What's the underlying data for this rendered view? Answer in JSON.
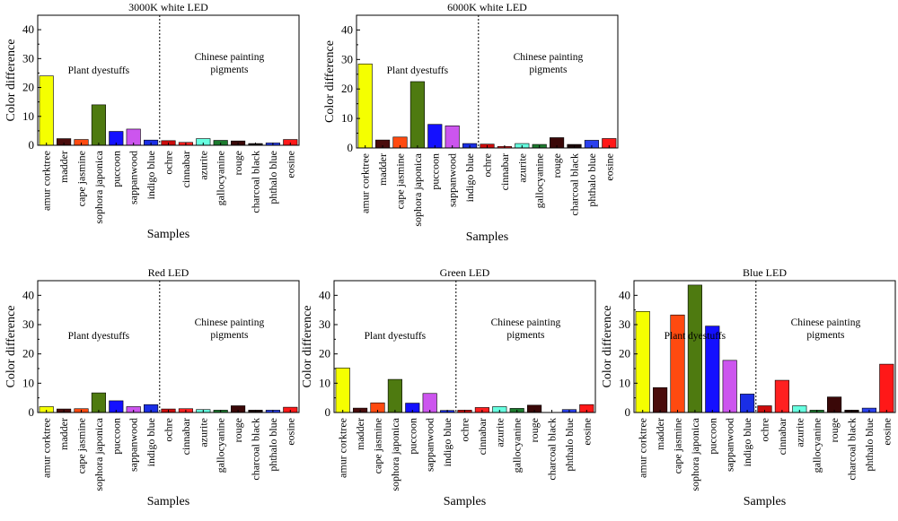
{
  "chart_data": [
    {
      "type": "bar",
      "title": "3000K white LED",
      "xlabel": "Samples",
      "ylabel": "Color difference",
      "ylim": [
        0,
        45
      ],
      "yticks": [
        0,
        10,
        20,
        30,
        40
      ],
      "categories": [
        "amur corktree",
        "madder",
        "cape jasmine",
        "sophora japonica",
        "puccoon",
        "sappanwood",
        "indigo blue",
        "ochre",
        "cinnabar",
        "azurite",
        "gallocyanine",
        "rouge",
        "charcoal black",
        "phthalo blue",
        "eosine"
      ],
      "values": [
        24,
        2.3,
        2.0,
        14,
        4.8,
        5.6,
        1.8,
        1.6,
        1.0,
        2.3,
        1.7,
        1.5,
        0.6,
        0.8,
        2.0
      ],
      "annotations": [
        "Plant dyestuffs",
        "Chinese painting pigments"
      ]
    },
    {
      "type": "bar",
      "title": "6000K white LED",
      "xlabel": "Samples",
      "ylabel": "Color difference",
      "ylim": [
        0,
        45
      ],
      "yticks": [
        0,
        10,
        20,
        30,
        40
      ],
      "categories": [
        "amur corktree",
        "madder",
        "cape jasmine",
        "sophora japonica",
        "puccoon",
        "sappanwood",
        "indigo blue",
        "ochre",
        "cinnabar",
        "azurite",
        "gallocyanine",
        "rouge",
        "charcoal black",
        "phthalo blue",
        "eosine"
      ],
      "values": [
        28.5,
        2.7,
        3.7,
        22.5,
        8.0,
        7.5,
        1.5,
        1.3,
        0.5,
        1.5,
        1.2,
        3.5,
        1.2,
        2.6,
        3.2
      ],
      "annotations": [
        "Plant dyestuffs",
        "Chinese painting pigments"
      ]
    },
    {
      "type": "bar",
      "title": "Red LED",
      "xlabel": "Samples",
      "ylabel": "Color difference",
      "ylim": [
        0,
        45
      ],
      "yticks": [
        0,
        10,
        20,
        30,
        40
      ],
      "categories": [
        "amur corktree",
        "madder",
        "cape jasmine",
        "sophora japonica",
        "puccoon",
        "sappanwood",
        "indigo blue",
        "ochre",
        "cinnabar",
        "azurite",
        "gallocyanine",
        "rouge",
        "charcoal black",
        "phthalo blue",
        "eosine"
      ],
      "values": [
        2.0,
        1.2,
        1.3,
        6.7,
        4.0,
        2.0,
        2.7,
        1.2,
        1.3,
        1.0,
        0.8,
        2.3,
        0.8,
        0.8,
        1.8
      ],
      "annotations": [
        "Plant dyestuffs",
        "Chinese painting pigments"
      ]
    },
    {
      "type": "bar",
      "title": "Green LED",
      "xlabel": "Samples",
      "ylabel": "Color difference",
      "ylim": [
        0,
        45
      ],
      "yticks": [
        0,
        10,
        20,
        30,
        40
      ],
      "categories": [
        "amur corktree",
        "madder",
        "cape jasmine",
        "sophora japonica",
        "puccoon",
        "sappanwood",
        "indigo blue",
        "ochre",
        "cinnabar",
        "azurite",
        "gallocyanine",
        "rouge",
        "charcoal black",
        "phthalo blue",
        "eosine"
      ],
      "values": [
        15.2,
        1.5,
        3.3,
        11.3,
        3.2,
        6.5,
        0.7,
        0.8,
        1.7,
        2.0,
        1.4,
        2.5,
        0.0,
        1.0,
        2.7
      ],
      "annotations": [
        "Plant dyestuffs",
        "Chinese painting pigments"
      ]
    },
    {
      "type": "bar",
      "title": "Blue LED",
      "xlabel": "Samples",
      "ylabel": "Color difference",
      "ylim": [
        0,
        45
      ],
      "yticks": [
        0,
        10,
        20,
        30,
        40
      ],
      "categories": [
        "amur corktree",
        "madder",
        "cape jasmine",
        "sophora japonica",
        "puccoon",
        "sappanwood",
        "indigo blue",
        "ochre",
        "cinnabar",
        "azurite",
        "gallocyanine",
        "rouge",
        "charcoal black",
        "phthalo blue",
        "eosine"
      ],
      "values": [
        34.5,
        8.5,
        33.3,
        43.5,
        29.5,
        17.8,
        6.3,
        2.3,
        11.0,
        2.3,
        0.8,
        5.3,
        0.8,
        1.5,
        16.5
      ],
      "annotations": [
        "Plant dyestuffs",
        "Chinese painting pigments"
      ]
    }
  ],
  "bar_colors": [
    "#f5ff00",
    "#4a0c0c",
    "#ff4a10",
    "#4e7a10",
    "#1410ff",
    "#cc55ee",
    "#1a2ee6",
    "#cc0c0c",
    "#ff2020",
    "#66ffe0",
    "#1c7a2e",
    "#3a0808",
    "#1a0606",
    "#2a40ee",
    "#ff1818"
  ]
}
